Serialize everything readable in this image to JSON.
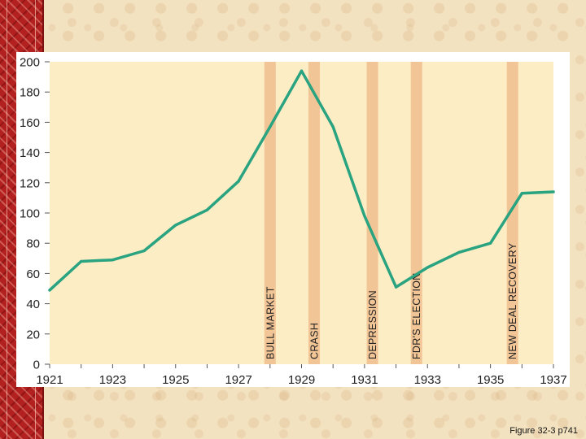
{
  "caption": "Figure 32-3 p741",
  "colors": {
    "plot_background": "#fdedc4",
    "line": "#2aa380",
    "bands": "#f2c596",
    "grid": "#f7f0dc",
    "axis_text": "#222222"
  },
  "chart_data": {
    "type": "line",
    "title": "",
    "xlabel": "",
    "ylabel": "",
    "xlim": [
      1921,
      1937
    ],
    "ylim": [
      0,
      200
    ],
    "x_ticks": [
      "1921",
      "1923",
      "1925",
      "1927",
      "1929",
      "1931",
      "1933",
      "1935",
      "1937"
    ],
    "y_ticks": [
      "0",
      "20",
      "40",
      "60",
      "80",
      "100",
      "120",
      "140",
      "160",
      "180",
      "200"
    ],
    "grid": false,
    "series": [
      {
        "x": [
          1921,
          1922,
          1923,
          1924,
          1925,
          1926,
          1927,
          1928,
          1929,
          1930,
          1931,
          1932,
          1933,
          1934,
          1935,
          1936,
          1937
        ],
        "values": [
          49,
          68,
          69,
          75,
          92,
          102,
          121,
          157,
          194,
          157,
          98,
          51,
          64,
          74,
          80,
          113,
          114
        ]
      }
    ],
    "bands": [
      {
        "label": "BULL MARKET",
        "x": 1928
      },
      {
        "label": "CRASH",
        "x": 1929.4
      },
      {
        "label": "DEPRESSION",
        "x": 1931.25
      },
      {
        "label": "FDR'S ELECTION",
        "x": 1932.65
      },
      {
        "label": "NEW DEAL RECOVERY",
        "x": 1935.7
      }
    ]
  }
}
